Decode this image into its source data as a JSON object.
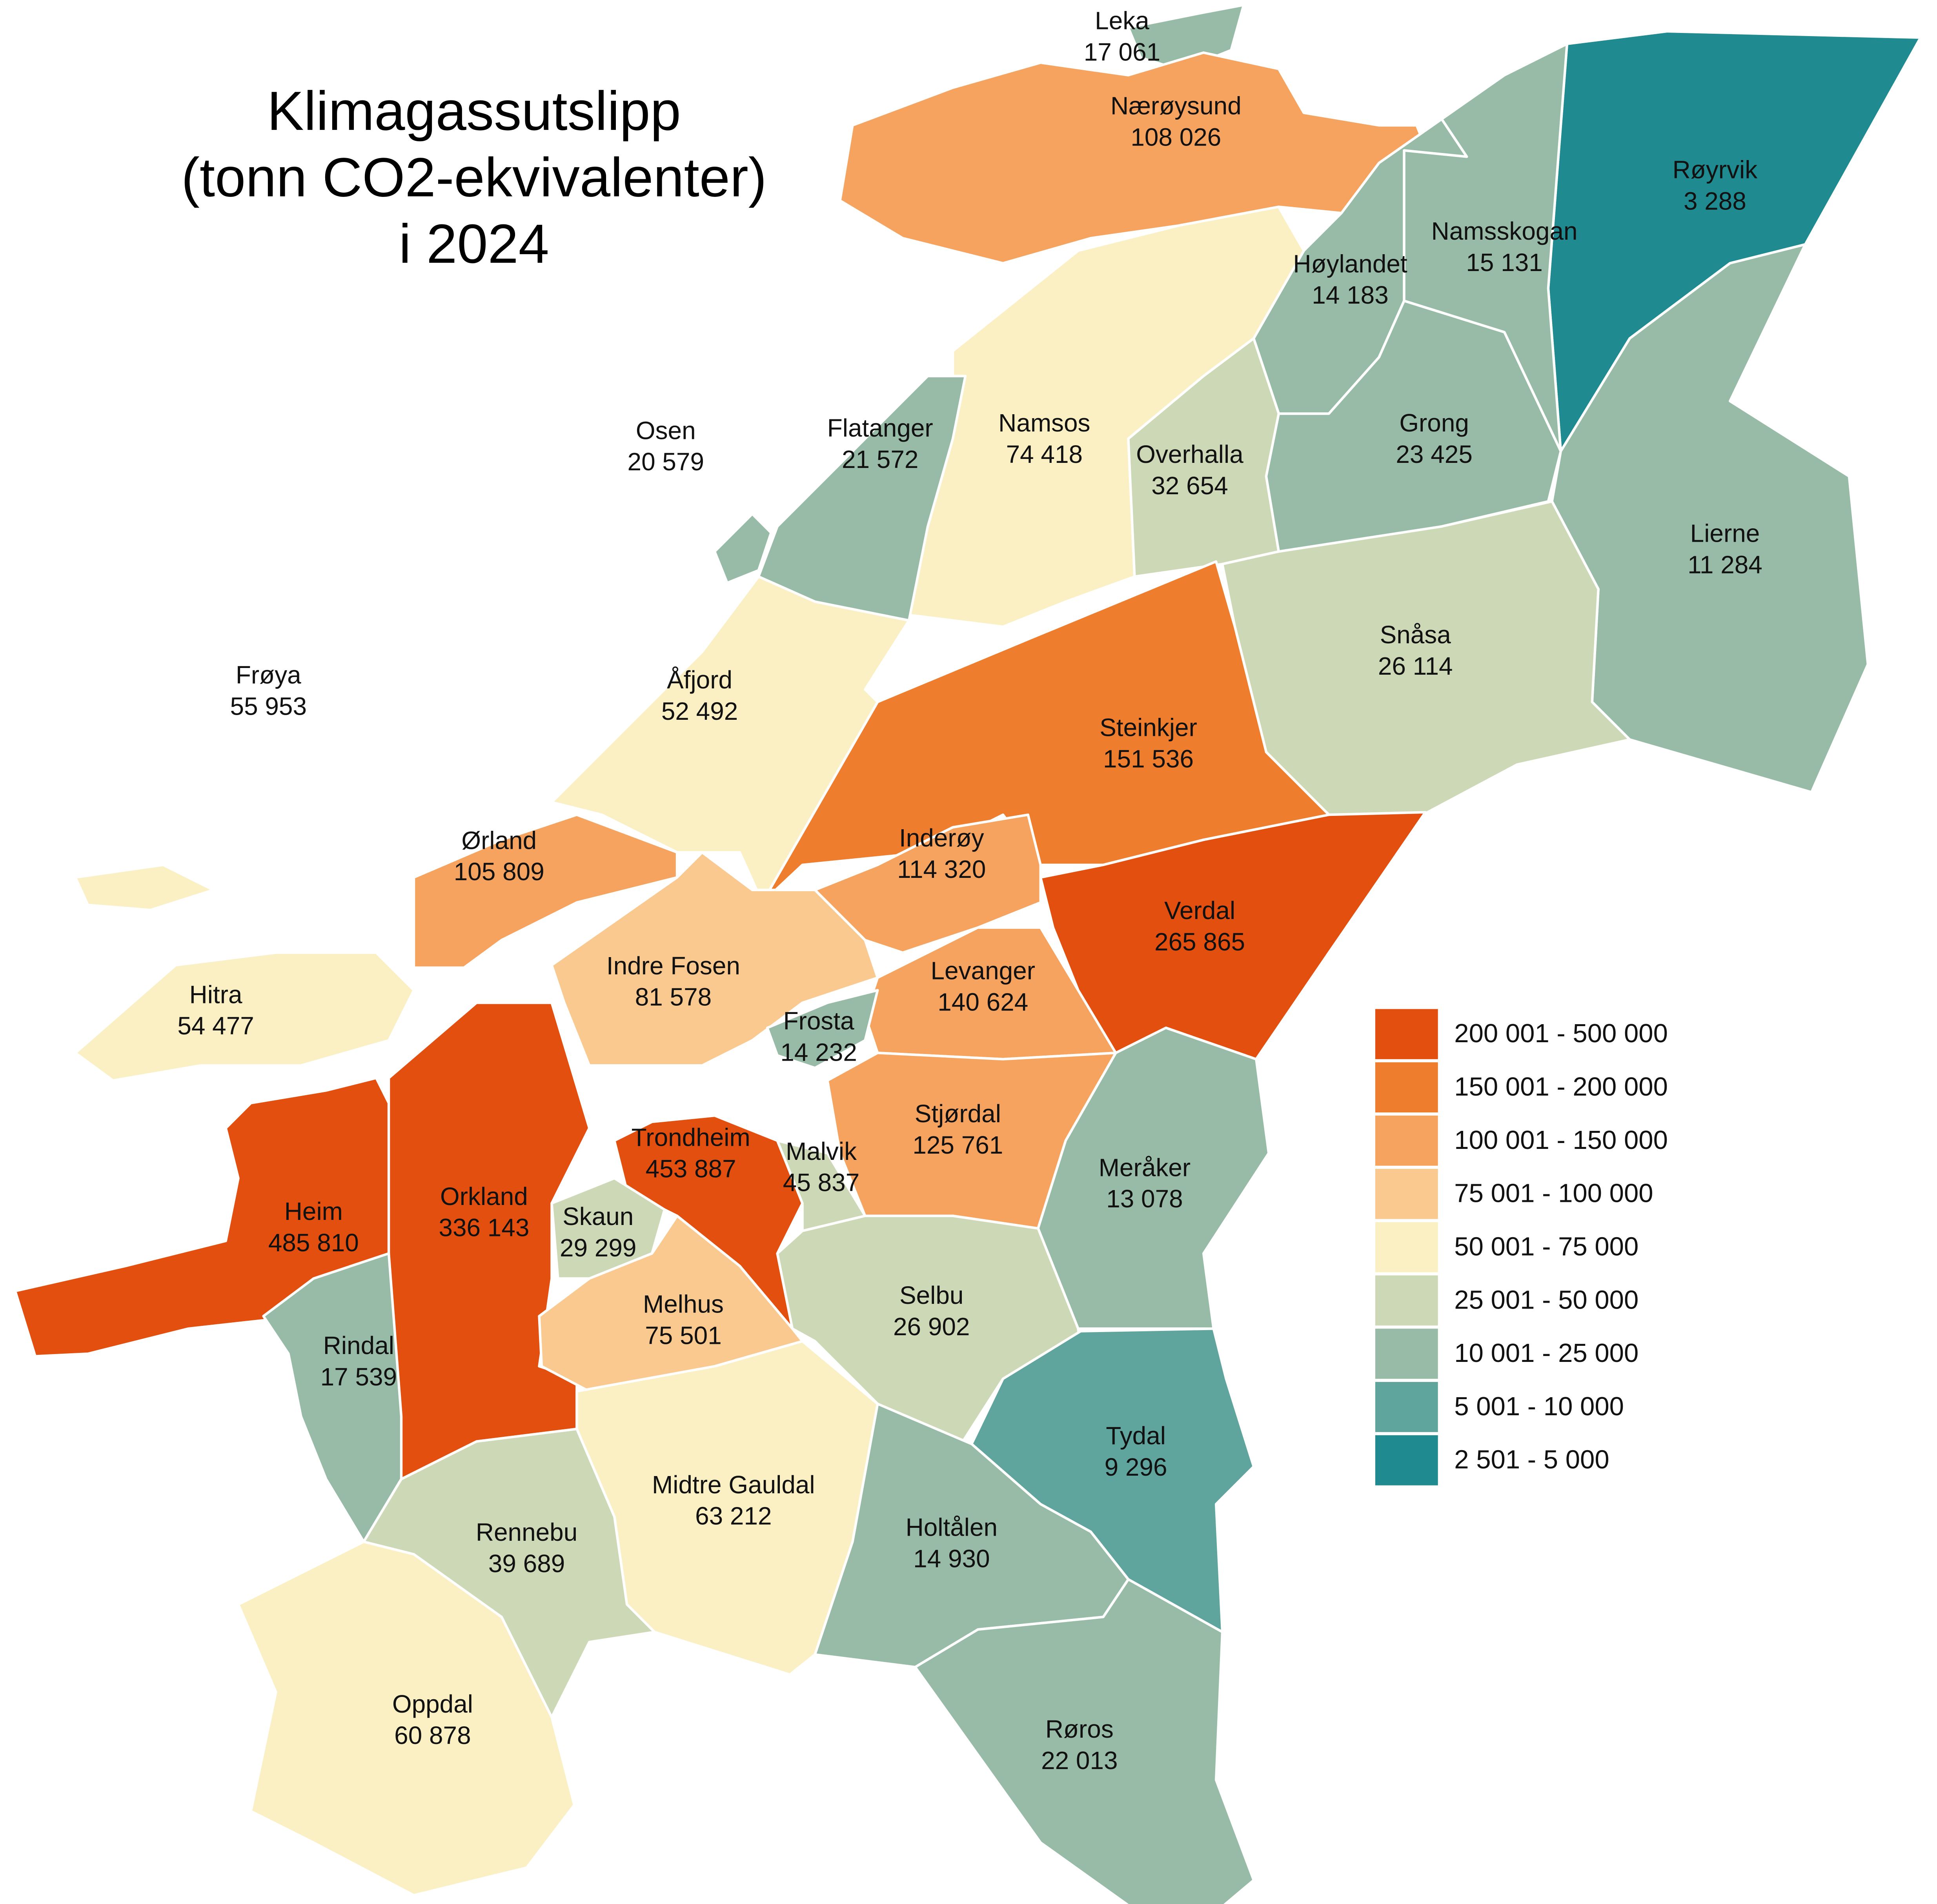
{
  "chart_data": {
    "type": "choropleth",
    "title": [
      "Klimagassutslipp",
      "(tonn CO2-ekvivalenter)",
      "i  2024"
    ],
    "categories": [
      "Leka",
      "Nærøysund",
      "Røyrvik",
      "Namsskogan",
      "Høylandet",
      "Namsos",
      "Flatanger",
      "Osen",
      "Overhalla",
      "Grong",
      "Lierne",
      "Snåsa",
      "Steinkjer",
      "Åfjord",
      "Frøya",
      "Inderøy",
      "Ørland",
      "Verdal",
      "Indre Fosen",
      "Hitra",
      "Levanger",
      "Frosta",
      "Stjørdal",
      "Meråker",
      "Trondheim",
      "Malvik",
      "Heim",
      "Orkland",
      "Skaun",
      "Selbu",
      "Melhus",
      "Rindal",
      "Tydal",
      "Midtre Gauldal",
      "Holtålen",
      "Rennebu",
      "Oppdal",
      "Røros"
    ],
    "values": [
      17061,
      108026,
      3288,
      15131,
      14183,
      74418,
      21572,
      20579,
      32654,
      23425,
      11284,
      26114,
      151536,
      52492,
      55953,
      114320,
      105809,
      265865,
      81578,
      54477,
      140624,
      14232,
      125761,
      13078,
      453887,
      45837,
      485810,
      336143,
      29299,
      26902,
      75501,
      17539,
      9296,
      63212,
      14930,
      39689,
      60878,
      22013
    ],
    "value_labels": [
      "17 061",
      "108 026",
      "3 288",
      "15 131",
      "14 183",
      "74 418",
      "21 572",
      "20 579",
      "32 654",
      "23 425",
      "11 284",
      "26 114",
      "151 536",
      "52 492",
      "55 953",
      "114 320",
      "105 809",
      "265 865",
      "81 578",
      "54 477",
      "140 624",
      "14 232",
      "125 761",
      "13 078",
      "453 887",
      "45 837",
      "485 810",
      "336 143",
      "29 299",
      "26 902",
      "75 501",
      "17 539",
      "9 296",
      "63 212",
      "14 930",
      "39 689",
      "60 878",
      "22 013"
    ],
    "legend": {
      "classes": [
        {
          "label": "200 001 - 500 000",
          "min": 200001,
          "max": 500000,
          "color": "#e34f0e"
        },
        {
          "label": "150 001 - 200 000",
          "min": 150001,
          "max": 200000,
          "color": "#ee7d2e"
        },
        {
          "label": "100 001 - 150 000",
          "min": 100001,
          "max": 150000,
          "color": "#f5a35e"
        },
        {
          "label": "75 001 - 100 000",
          "min": 75001,
          "max": 100000,
          "color": "#f9c98f"
        },
        {
          "label": "50 001 - 75 000",
          "min": 50001,
          "max": 75000,
          "color": "#faf0c4"
        },
        {
          "label": "25 001 - 50 000",
          "min": 25001,
          "max": 50000,
          "color": "#cdd8b6"
        },
        {
          "label": "10 001 - 25 000",
          "min": 10001,
          "max": 25000,
          "color": "#98bba8"
        },
        {
          "label": "5 001 - 10 000",
          "min": 5001,
          "max": 10000,
          "color": "#5fa59d"
        },
        {
          "label": "2 501 - 5 000",
          "min": 2501,
          "max": 5000,
          "color": "#1f8a8f"
        }
      ]
    }
  }
}
